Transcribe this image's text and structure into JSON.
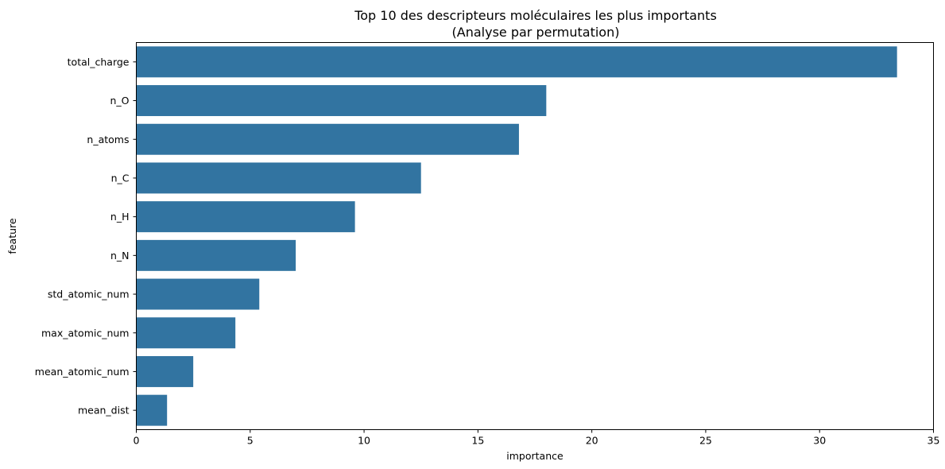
{
  "chart_data": {
    "type": "bar",
    "orientation": "horizontal",
    "title_lines": [
      "Top 10 des descripteurs moléculaires les plus importants",
      "(Analyse par permutation)"
    ],
    "xlabel": "importance",
    "ylabel": "feature",
    "xlim": [
      0,
      35
    ],
    "xticks": [
      0,
      5,
      10,
      15,
      20,
      25,
      30,
      35
    ],
    "xtick_labels": [
      "0",
      "5",
      "10",
      "15",
      "20",
      "25",
      "30",
      "35"
    ],
    "bar_color": "#3274a1",
    "grid": false,
    "categories": [
      "total_charge",
      "n_O",
      "n_atoms",
      "n_C",
      "n_H",
      "n_N",
      "std_atomic_num",
      "max_atomic_num",
      "mean_atomic_num",
      "mean_dist"
    ],
    "values": [
      33.4,
      18.0,
      16.8,
      12.5,
      9.6,
      7.0,
      5.4,
      4.35,
      2.5,
      1.35
    ]
  }
}
